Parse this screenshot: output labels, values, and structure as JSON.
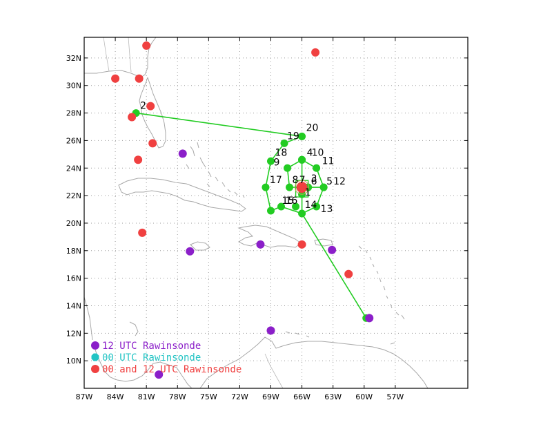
{
  "map": {
    "lon_range": [
      -87,
      -50
    ],
    "lat_range": [
      8,
      33.5
    ],
    "x_ticks": [
      {
        "value": -87,
        "label": "87W"
      },
      {
        "value": -84,
        "label": "84W"
      },
      {
        "value": -81,
        "label": "81W"
      },
      {
        "value": -78,
        "label": "78W"
      },
      {
        "value": -75,
        "label": "75W"
      },
      {
        "value": -72,
        "label": "72W"
      },
      {
        "value": -69,
        "label": "69W"
      },
      {
        "value": -66,
        "label": "66W"
      },
      {
        "value": -63,
        "label": "63W"
      },
      {
        "value": -60,
        "label": "60W"
      },
      {
        "value": -57,
        "label": "57W"
      }
    ],
    "y_ticks": [
      {
        "value": 10,
        "label": "10N"
      },
      {
        "value": 12,
        "label": "12N"
      },
      {
        "value": 14,
        "label": "14N"
      },
      {
        "value": 16,
        "label": "16N"
      },
      {
        "value": 18,
        "label": "18N"
      },
      {
        "value": 20,
        "label": "20N"
      },
      {
        "value": 22,
        "label": "22N"
      },
      {
        "value": 24,
        "label": "24N"
      },
      {
        "value": 26,
        "label": "26N"
      },
      {
        "value": 28,
        "label": "28N"
      },
      {
        "value": 30,
        "label": "30N"
      },
      {
        "value": 32,
        "label": "32N"
      }
    ],
    "grid": "dotted",
    "colors": {
      "flight_track": "#22cc22",
      "rawinsonde_12utc": "#8b1fc9",
      "rawinsonde_00utc": "#22c4c4",
      "rawinsonde_00_12utc": "#f04040",
      "coastline": "#a8a8a8",
      "center_marker": "#f04040"
    },
    "flight_track": [
      {
        "label": "2",
        "lon": -82.0,
        "lat": 28.0
      },
      {
        "label": "19",
        "lon": -67.7,
        "lat": 25.8
      },
      {
        "label": "20",
        "lon": -66.0,
        "lat": 26.3
      },
      {
        "label": "18",
        "lon": -69.0,
        "lat": 24.5
      },
      {
        "label": "4",
        "lon": -66.0,
        "lat": 24.6
      },
      {
        "label": "10",
        "lon": -66.0,
        "lat": 24.6
      },
      {
        "label": "11",
        "lon": -64.6,
        "lat": 24.0
      },
      {
        "label": "9",
        "lon": -67.4,
        "lat": 24.0
      },
      {
        "label": "8",
        "lon": -67.2,
        "lat": 22.6
      },
      {
        "label": "7",
        "lon": -66.0,
        "lat": 22.6
      },
      {
        "label": "3",
        "lon": -65.4,
        "lat": 22.6
      },
      {
        "label": "6",
        "lon": -65.4,
        "lat": 22.6
      },
      {
        "label": "5",
        "lon": -63.9,
        "lat": 22.6
      },
      {
        "label": "12",
        "lon": -63.9,
        "lat": 22.6
      },
      {
        "label": "17",
        "lon": -69.5,
        "lat": 22.6
      },
      {
        "label": "1",
        "lon": -66.0,
        "lat": 22.1
      },
      {
        "label": "15",
        "lon": -66.6,
        "lat": 21.2
      },
      {
        "label": "16",
        "lon": -68.0,
        "lat": 21.2
      },
      {
        "label": "14",
        "lon": -66.0,
        "lat": 20.7
      },
      {
        "label": "13",
        "lon": -64.6,
        "lat": 21.2
      },
      {
        "label": "",
        "lon": -69.0,
        "lat": 20.9
      },
      {
        "label": "",
        "lon": -59.8,
        "lat": 13.1
      }
    ],
    "storm_center": {
      "lon": -66.0,
      "lat": 22.6
    },
    "rawinsondes_12utc": [
      {
        "lon": -77.5,
        "lat": 25.05
      },
      {
        "lon": -76.8,
        "lat": 17.95
      },
      {
        "lon": -70.0,
        "lat": 18.45
      },
      {
        "lon": -63.1,
        "lat": 18.05
      },
      {
        "lon": -59.5,
        "lat": 13.1
      },
      {
        "lon": -69.0,
        "lat": 12.2
      },
      {
        "lon": -79.8,
        "lat": 9.0
      }
    ],
    "rawinsondes_00_12utc": [
      {
        "lon": -81.0,
        "lat": 32.9
      },
      {
        "lon": -84.0,
        "lat": 30.5
      },
      {
        "lon": -81.7,
        "lat": 30.5
      },
      {
        "lon": -80.6,
        "lat": 28.5
      },
      {
        "lon": -82.4,
        "lat": 27.7
      },
      {
        "lon": -80.4,
        "lat": 25.8
      },
      {
        "lon": -81.8,
        "lat": 24.6
      },
      {
        "lon": -81.4,
        "lat": 19.3
      },
      {
        "lon": -66.0,
        "lat": 18.45
      },
      {
        "lon": -64.7,
        "lat": 32.4
      },
      {
        "lon": -61.5,
        "lat": 16.3
      }
    ],
    "legend": [
      {
        "key": "12utc",
        "label": "12 UTC Rawinsonde",
        "color": "#8b1fc9"
      },
      {
        "key": "00utc",
        "label": "00 UTC Rawinsonde",
        "color": "#22c4c4"
      },
      {
        "key": "00_12utc",
        "label": "00 and 12 UTC Rawinsonde",
        "color": "#f04040"
      }
    ]
  }
}
